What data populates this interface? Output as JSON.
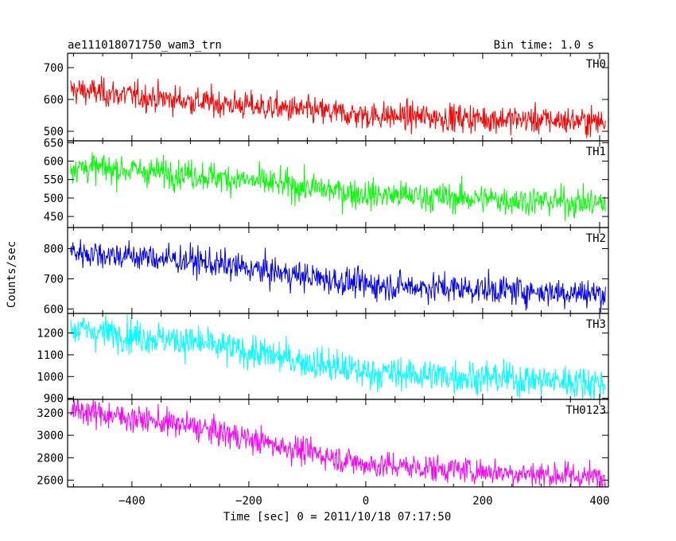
{
  "header": {
    "title": "ae111018071750_wam3_trn",
    "bin_time": "Bin time: 1.0 s"
  },
  "chart_data": {
    "type": "line",
    "xlabel": "Time [sec] 0 = 2011/10/18 07:17:50",
    "ylabel": "Counts/sec",
    "xlim": [
      -510,
      415
    ],
    "x_ticks": [
      -400,
      -200,
      0,
      200,
      400
    ],
    "x_tick_labels": [
      "−400",
      "−200",
      "0",
      "200",
      "400"
    ],
    "x_range_data": [
      -505,
      410
    ],
    "panels": [
      {
        "name": "TH0",
        "color": "#ff0000",
        "ylim": [
          470,
          745
        ],
        "y_ticks": [
          500,
          600,
          700
        ],
        "y_tick_labels": [
          "500",
          "600",
          "700"
        ],
        "trend": [
          [
            -505,
            630
          ],
          [
            -300,
            595
          ],
          [
            0,
            550
          ],
          [
            410,
            530
          ]
        ],
        "noise_sd": 22
      },
      {
        "name": "TH1",
        "color": "#00ff00",
        "ylim": [
          420,
          655
        ],
        "y_ticks": [
          450,
          500,
          550,
          600,
          650
        ],
        "y_tick_labels": [
          "450",
          "500",
          "550",
          "600",
          "650"
        ],
        "trend": [
          [
            -505,
            585
          ],
          [
            -300,
            565
          ],
          [
            0,
            510
          ],
          [
            410,
            485
          ]
        ],
        "noise_sd": 20
      },
      {
        "name": "TH2",
        "color": "#0000ff",
        "ylim": [
          585,
          870
        ],
        "y_ticks": [
          600,
          700,
          800
        ],
        "y_tick_labels": [
          "600",
          "700",
          "800"
        ],
        "trend": [
          [
            -505,
            790
          ],
          [
            -300,
            760
          ],
          [
            0,
            680
          ],
          [
            410,
            650
          ]
        ],
        "noise_sd": 24
      },
      {
        "name": "TH3",
        "color": "#00ffff",
        "ylim": [
          895,
          1290
        ],
        "y_ticks": [
          900,
          1000,
          1100,
          1200
        ],
        "y_tick_labels": [
          "900",
          "1000",
          "1100",
          "1200"
        ],
        "trend": [
          [
            -505,
            1220
          ],
          [
            -300,
            1160
          ],
          [
            0,
            1020
          ],
          [
            410,
            970
          ]
        ],
        "noise_sd": 38
      },
      {
        "name": "TH0123",
        "color": "#ff00ff",
        "ylim": [
          2540,
          3320
        ],
        "y_ticks": [
          2600,
          2800,
          3000,
          3200
        ],
        "y_tick_labels": [
          "2600",
          "2800",
          "3000",
          "3200"
        ],
        "trend": [
          [
            -505,
            3230
          ],
          [
            -300,
            3080
          ],
          [
            0,
            2740
          ],
          [
            410,
            2620
          ]
        ],
        "noise_sd": 60
      }
    ]
  }
}
